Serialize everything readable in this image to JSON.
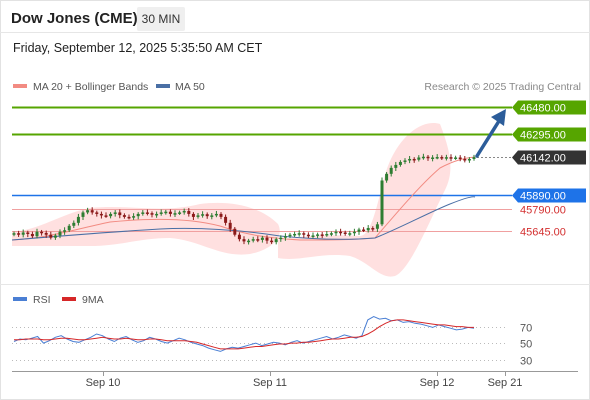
{
  "header": {
    "title": "Dow Jones (CME)",
    "timeframe": "30 MIN",
    "datetime": "Friday, September 12, 2025 5:35:50 AM CET"
  },
  "legend": {
    "ma20": "MA 20 + Bollinger Bands",
    "ma50": "MA 50",
    "credit": "Research © 2025 Trading Central",
    "rsi": "RSI",
    "rsi_ma": "9MA"
  },
  "colors": {
    "bull_candle": "#2e7d32",
    "bear_candle": "#8b1a1a",
    "ma20": "#f28b82",
    "bollinger_fill": "#ffd6d6",
    "ma50": "#4a6fa5",
    "resistance": "#56a500",
    "current": "#333333",
    "pivot": "#1e73e8",
    "support": "#d32f2f",
    "arrow": "#2c5d9a",
    "rsi": "#4a7fd4",
    "rsi_ma": "#d62728"
  },
  "chart_data": [
    {
      "type": "candlestick",
      "title": "Dow Jones (CME)",
      "timeframe": "30 MIN",
      "x_ticks": [
        "Sep 10",
        "Sep 11",
        "Sep 12",
        "Sep 21"
      ],
      "price_levels": [
        {
          "value": 46480.0,
          "label": "46480.00",
          "kind": "resistance"
        },
        {
          "value": 46295.0,
          "label": "46295.00",
          "kind": "resistance"
        },
        {
          "value": 46142.0,
          "label": "46142.00",
          "kind": "current"
        },
        {
          "value": 45890.0,
          "label": "45890.00",
          "kind": "pivot"
        },
        {
          "value": 45790.0,
          "label": "45790.00",
          "kind": "support"
        },
        {
          "value": 45645.0,
          "label": "45645.00",
          "kind": "support"
        }
      ],
      "ohlc_close_approx": [
        45630,
        45620,
        45635,
        45625,
        45610,
        45640,
        45632,
        45620,
        45600,
        45615,
        45640,
        45650,
        45680,
        45700,
        45740,
        45770,
        45785,
        45770,
        45760,
        45750,
        45745,
        45760,
        45770,
        45752,
        45740,
        45738,
        45745,
        45760,
        45770,
        45765,
        45755,
        45760,
        45770,
        45775,
        45760,
        45765,
        45770,
        45780,
        45760,
        45740,
        45750,
        45758,
        45745,
        45750,
        45760,
        45740,
        45700,
        45660,
        45620,
        45590,
        45575,
        45580,
        45590,
        45585,
        45600,
        45580,
        45570,
        45590,
        45600,
        45610,
        45620,
        45625,
        45630,
        45620,
        45610,
        45615,
        45622,
        45618,
        45625,
        45630,
        45640,
        45635,
        45625,
        45630,
        45640,
        45655,
        45650,
        45665,
        45660,
        45690,
        45985,
        46030,
        46070,
        46090,
        46110,
        46120,
        46130,
        46125,
        46140,
        46145,
        46135,
        46140,
        46143,
        46138,
        46142,
        46136,
        46140,
        46130,
        46125,
        46130,
        46142
      ],
      "ma20_approx": {
        "start": 45650,
        "end": 46125
      },
      "ma50_approx": {
        "start": 45640,
        "end": 45895
      },
      "forecast_target": 46480.0
    },
    {
      "type": "line",
      "title": "RSI",
      "series": [
        {
          "name": "RSI",
          "values": [
            52,
            55,
            54,
            56,
            58,
            50,
            53,
            57,
            59,
            55,
            52,
            51,
            54,
            57,
            61,
            59,
            55,
            52,
            56,
            58,
            54,
            51,
            53,
            57,
            55,
            52,
            50,
            53,
            56,
            54,
            51,
            49,
            47,
            44,
            42,
            40,
            43,
            45,
            44,
            46,
            48,
            50,
            47,
            49,
            51,
            50,
            48,
            51,
            53,
            50,
            52,
            54,
            56,
            58,
            55,
            57,
            60,
            58,
            56,
            59,
            78,
            82,
            79,
            80,
            77,
            78,
            75,
            76,
            74,
            73,
            71,
            69,
            72,
            70,
            68,
            66,
            67,
            69,
            68
          ]
        },
        {
          "name": "9MA",
          "values": [
            54,
            54,
            55,
            55,
            55,
            54,
            54,
            55,
            56,
            56,
            55,
            54,
            54,
            55,
            56,
            57,
            56,
            55,
            55,
            56,
            55,
            54,
            54,
            55,
            55,
            54,
            53,
            53,
            53,
            53,
            52,
            51,
            49,
            47,
            45,
            43,
            43,
            43,
            43,
            44,
            45,
            46,
            46,
            47,
            48,
            49,
            49,
            50,
            50,
            51,
            51,
            52,
            53,
            54,
            55,
            55,
            56,
            57,
            57,
            58,
            61,
            65,
            70,
            74,
            77,
            78,
            78,
            77,
            76,
            75,
            74,
            73,
            72,
            72,
            71,
            70,
            70,
            69,
            69
          ]
        }
      ],
      "y_ticks": [
        70,
        50,
        30
      ],
      "ylim": [
        20,
        90
      ]
    }
  ]
}
